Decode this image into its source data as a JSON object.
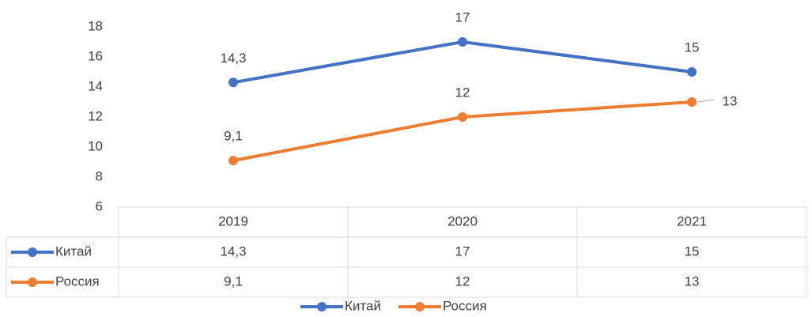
{
  "chart_data": {
    "type": "line",
    "categories": [
      "2019",
      "2020",
      "2021"
    ],
    "series": [
      {
        "name": "Китай",
        "color": "#4472c4",
        "values": [
          14.3,
          17,
          15
        ],
        "value_labels": [
          "14,3",
          "17",
          "15"
        ]
      },
      {
        "name": "Россия",
        "color": "#ed7d31",
        "values": [
          9.1,
          12,
          13
        ],
        "value_labels": [
          "9,1",
          "12",
          "13"
        ]
      }
    ],
    "ylim": [
      6,
      18
    ],
    "yticks": [
      6,
      8,
      10,
      12,
      14,
      16,
      18
    ],
    "grid": false
  }
}
